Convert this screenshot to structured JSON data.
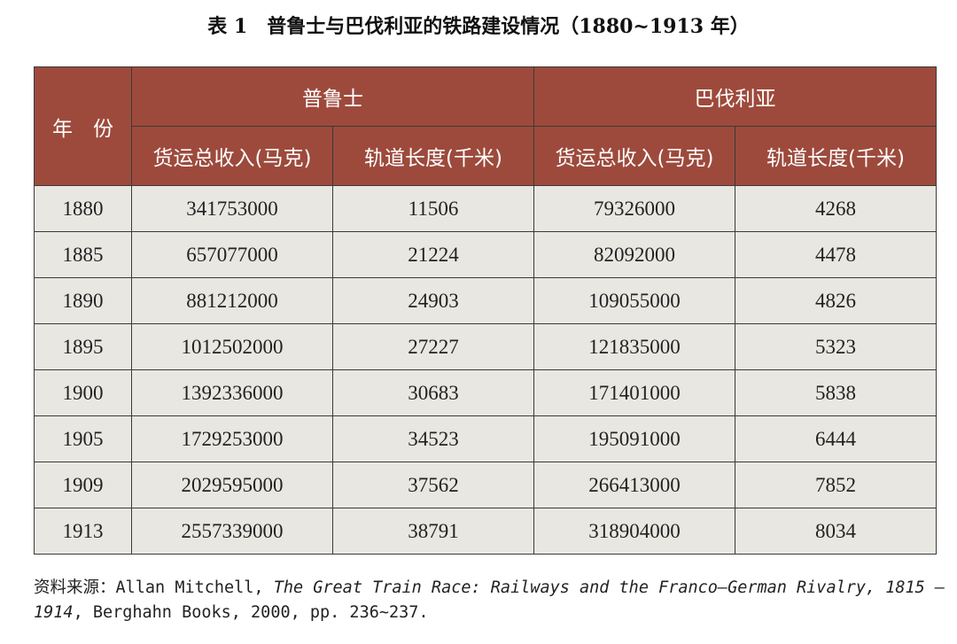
{
  "title": "表 1　普鲁士与巴伐利亚的铁路建设情况（1880~1913 年）",
  "table": {
    "year_header": "年　份",
    "groups": [
      "普鲁士",
      "巴伐利亚"
    ],
    "subheaders": [
      "货运总收入(马克)",
      "轨道长度(千米)",
      "货运总收入(马克)",
      "轨道长度(千米)"
    ],
    "rows": [
      [
        1880,
        341753000,
        11506,
        79326000,
        4268
      ],
      [
        1885,
        657077000,
        21224,
        82092000,
        4478
      ],
      [
        1890,
        881212000,
        24903,
        109055000,
        4826
      ],
      [
        1895,
        1012502000,
        27227,
        121835000,
        5323
      ],
      [
        1900,
        1392336000,
        30683,
        171401000,
        5838
      ],
      [
        1905,
        1729253000,
        34523,
        195091000,
        6444
      ],
      [
        1909,
        2029595000,
        37562,
        266413000,
        7852
      ],
      [
        1913,
        2557339000,
        38791,
        318904000,
        8034
      ]
    ]
  },
  "source": {
    "prefix": "资料来源：Allan Mitchell, ",
    "title": "The Great Train Race: Railways and the Franco–German Rivalry, 1815 – 1914",
    "suffix": ", Berghahn Books, 2000, pp. 236~237."
  }
}
